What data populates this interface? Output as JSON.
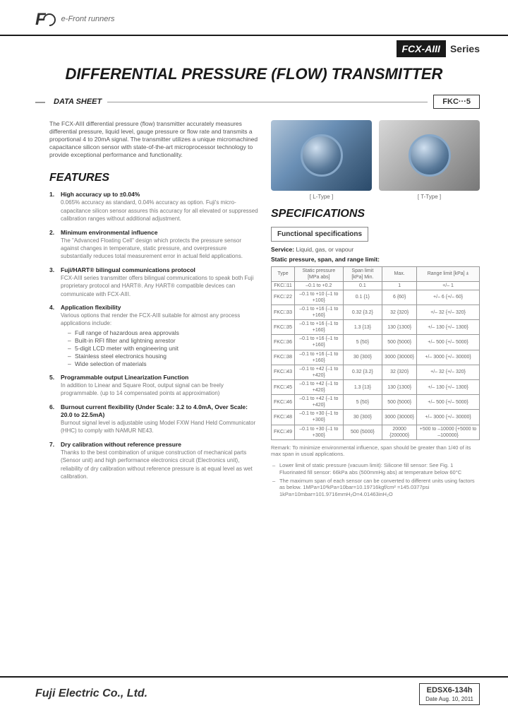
{
  "header": {
    "logo_text": "F",
    "tagline": "e-Front runners",
    "series_badge": "FCX-AIII",
    "series_suffix": "Series",
    "title": "DIFFERENTIAL PRESSURE (FLOW) TRANSMITTER",
    "ds_label": "DATA SHEET",
    "fkc_label": "FKC···5"
  },
  "intro": "The FCX-AIII differential pressure (flow) transmitter accurately measures differential pressure, liquid level, gauge pressure or flow rate and transmits a proportional 4 to 20mA signal. The transmitter utilizes a unique micromachined capacitance silicon sensor with state-of-the-art microprocessor technology to provide exceptional performance and functionality.",
  "features_heading": "FEATURES",
  "features": [
    {
      "title": "High accuracy up to ±0.04%",
      "body": "0.065% accuracy as standard, 0.04% accuracy as option.\nFuji's micro-capacitance silicon sensor assures this accuracy for all elevated or suppressed calibration ranges without additional adjustment."
    },
    {
      "title": "Minimum environmental influence",
      "body": "The \"Advanced Floating Cell\" design which protects the pressure sensor against changes in temperature, static pressure, and overpressure substantially reduces total measurement error in actual field applications."
    },
    {
      "title": "Fuji/HART® bilingual communications protocol",
      "body": "FCX-AIII series transmitter offers bilingual communications to speak both Fuji proprietary protocol and HART®. Any HART® compatible devices can communicate with FCX-AIII."
    },
    {
      "title": "Application flexibility",
      "body": "Various options that render the FCX-AIII suitable for almost any process applications include:",
      "subitems": [
        "Full range of hazardous area approvals",
        "Built-in RFI filter and lightning arrestor",
        "5-digit LCD meter with engineering unit",
        "Stainless steel electronics housing",
        "Wide selection of materials"
      ]
    },
    {
      "title": "Programmable output Linearization Function",
      "body": "In addition to Linear and Square Root, output signal can be freely programmable.\n(up to 14 compensated points at approximation)"
    },
    {
      "title": "Burnout current flexibility (Under Scale: 3.2 to 4.0mA, Over Scale: 20.0 to 22.5mA)",
      "body": "Burnout signal level is adjustable using Model FXW Hand Held Communicator (HHC) to comply with NAMUR NE43."
    },
    {
      "title": "Dry calibration without reference pressure",
      "body": "Thanks to the best combination of unique construction of mechanical parts (Sensor unit) and high performance electronics circuit (Electronics unit), reliability of dry calibration without reference pressure is at equal level as wet calibration."
    }
  ],
  "images": {
    "l_caption": "[ L-Type ]",
    "t_caption": "[ T-Type ]"
  },
  "specs_heading": "SPECIFICATIONS",
  "funcspec_label": "Functional specifications",
  "spec_lines": {
    "service_label": "Service:",
    "service_value": "Liquid, gas, or vapour",
    "static_label": "Static pressure, span, and range limit:"
  },
  "spec_table": {
    "headers": [
      "Type",
      "Static pressure [MPa abs]",
      "Span limit [kPa]\nMin.",
      "Max.",
      "Range limit [kPa] ±"
    ],
    "rows": [
      [
        "FKC□11",
        "–0.1 to +0.2",
        "0.1",
        "1",
        "+/– 1"
      ],
      [
        "FKC□22",
        "–0.1 to +10\n{–1 to +100}",
        "0.1\n{1}",
        "6\n{60}",
        "+/– 6\n{+/– 60}"
      ],
      [
        "FKC□33",
        "–0.1 to +16\n{–1 to +160}",
        "0.32\n{3.2}",
        "32\n{320}",
        "+/– 32\n{+/– 320}"
      ],
      [
        "FKC□35",
        "–0.1 to +16\n{–1 to +160}",
        "1.3\n{13}",
        "130\n{1300}",
        "+/– 130\n{+/– 1300}"
      ],
      [
        "FKC□36",
        "–0.1 to +16\n{–1 to +160}",
        "5\n{50}",
        "500\n{5000}",
        "+/– 500\n{+/– 5000}"
      ],
      [
        "FKC□38",
        "–0.1 to +16\n{–1 to +160}",
        "30\n{300}",
        "3000\n{30000}",
        "+/– 3000\n{+/– 30000}"
      ],
      [
        "FKC□43",
        "–0.1 to +42\n{–1 to +420}",
        "0.32\n{3.2}",
        "32\n{320}",
        "+/– 32\n{+/– 320}"
      ],
      [
        "FKC□45",
        "–0.1 to +42\n{–1 to +420}",
        "1.3\n{13}",
        "130\n{1300}",
        "+/– 130\n{+/– 1300}"
      ],
      [
        "FKC□46",
        "–0.1 to +42\n{–1 to +420}",
        "5\n{50}",
        "500\n{5000}",
        "+/– 500\n{+/– 5000}"
      ],
      [
        "FKC□48",
        "–0.1 to +30\n{–1 to +300}",
        "30\n{300}",
        "3000\n{30000}",
        "+/– 3000\n{+/– 30000}"
      ],
      [
        "FKC□49",
        "–0.1 to +30\n{–1 to +300}",
        "500\n{5000}",
        "20000\n{200000}",
        "+500 to –10000\n{+5000 to –100000}"
      ]
    ]
  },
  "remark_label": "Remark:",
  "remark_text": "To minimize environmental influence, span should be greater than 1/40 of its max span in usual applications.",
  "notes": [
    "Lower limit of static pressure (vacuum limit):\nSilicone fill sensor: See Fig. 1\nFluorinated fill sensor: 66kPa abs (500mmHg abs) at temperature below 60°C",
    "The maximum span of each sensor can be converted to different units using factors as below.\n1MPa=10³kPa=10bar=10.19716kgf/cm²\n=145.0377psi\n1kPa=10mbar=101.9716mmH₂O=4.01463inH₂O"
  ],
  "footer": {
    "company": "Fuji Electric Co., Ltd.",
    "doc_num": "EDSX6-134h",
    "doc_date": "Date    Aug. 10, 2011"
  },
  "colors": {
    "text": "#333333",
    "muted": "#777777",
    "rule": "#1a1a1a",
    "border": "#999999",
    "bg": "#ffffff"
  }
}
